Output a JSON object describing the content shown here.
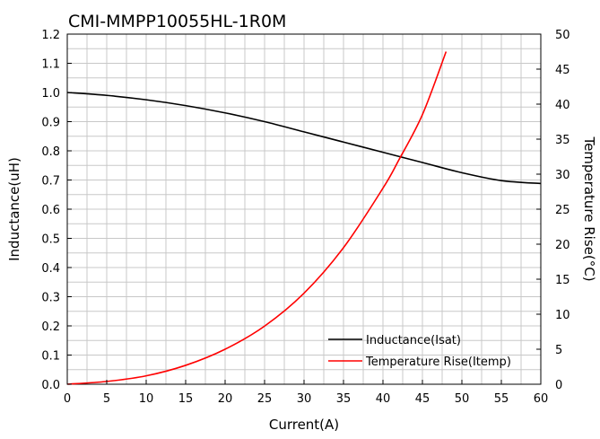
{
  "chart_data": {
    "type": "line",
    "title": "CMI-MMPP10055HL-1R0M",
    "xlabel": "Current(A)",
    "ylabel": "Inductance(uH)",
    "y2label": "Temperature Rise(°C)",
    "xlim": [
      0,
      60
    ],
    "ylim": [
      0,
      1.2
    ],
    "y2lim": [
      0,
      50
    ],
    "xticks": [
      "0",
      "5",
      "10",
      "15",
      "20",
      "25",
      "30",
      "35",
      "40",
      "45",
      "50",
      "55",
      "60"
    ],
    "yticks": [
      "0.0",
      "0.1",
      "0.2",
      "0.3",
      "0.4",
      "0.5",
      "0.6",
      "0.7",
      "0.8",
      "0.9",
      "1.0",
      "1.1",
      "1.2"
    ],
    "y2ticks": [
      "0",
      "5",
      "10",
      "15",
      "20",
      "25",
      "30",
      "35",
      "40",
      "45",
      "50"
    ],
    "grid": true,
    "legend_position": "bottom-right",
    "series": [
      {
        "name": "Inductance(Isat)",
        "axis": "left",
        "color": "#000000",
        "x": [
          0,
          5,
          10,
          15,
          20,
          25,
          30,
          35,
          40,
          45,
          50,
          55,
          60
        ],
        "y": [
          1.0,
          0.99,
          0.975,
          0.955,
          0.93,
          0.9,
          0.865,
          0.83,
          0.795,
          0.76,
          0.725,
          0.698,
          0.688
        ]
      },
      {
        "name": "Temperature Rise(Itemp)",
        "axis": "right",
        "color": "#ff0000",
        "x": [
          0,
          5,
          10,
          15,
          20,
          25,
          30,
          35,
          40,
          42,
          45,
          48
        ],
        "y": [
          0,
          0.4,
          1.2,
          2.7,
          5.0,
          8.3,
          13.0,
          19.5,
          28.0,
          32.0,
          38.5,
          47.5
        ]
      }
    ]
  }
}
